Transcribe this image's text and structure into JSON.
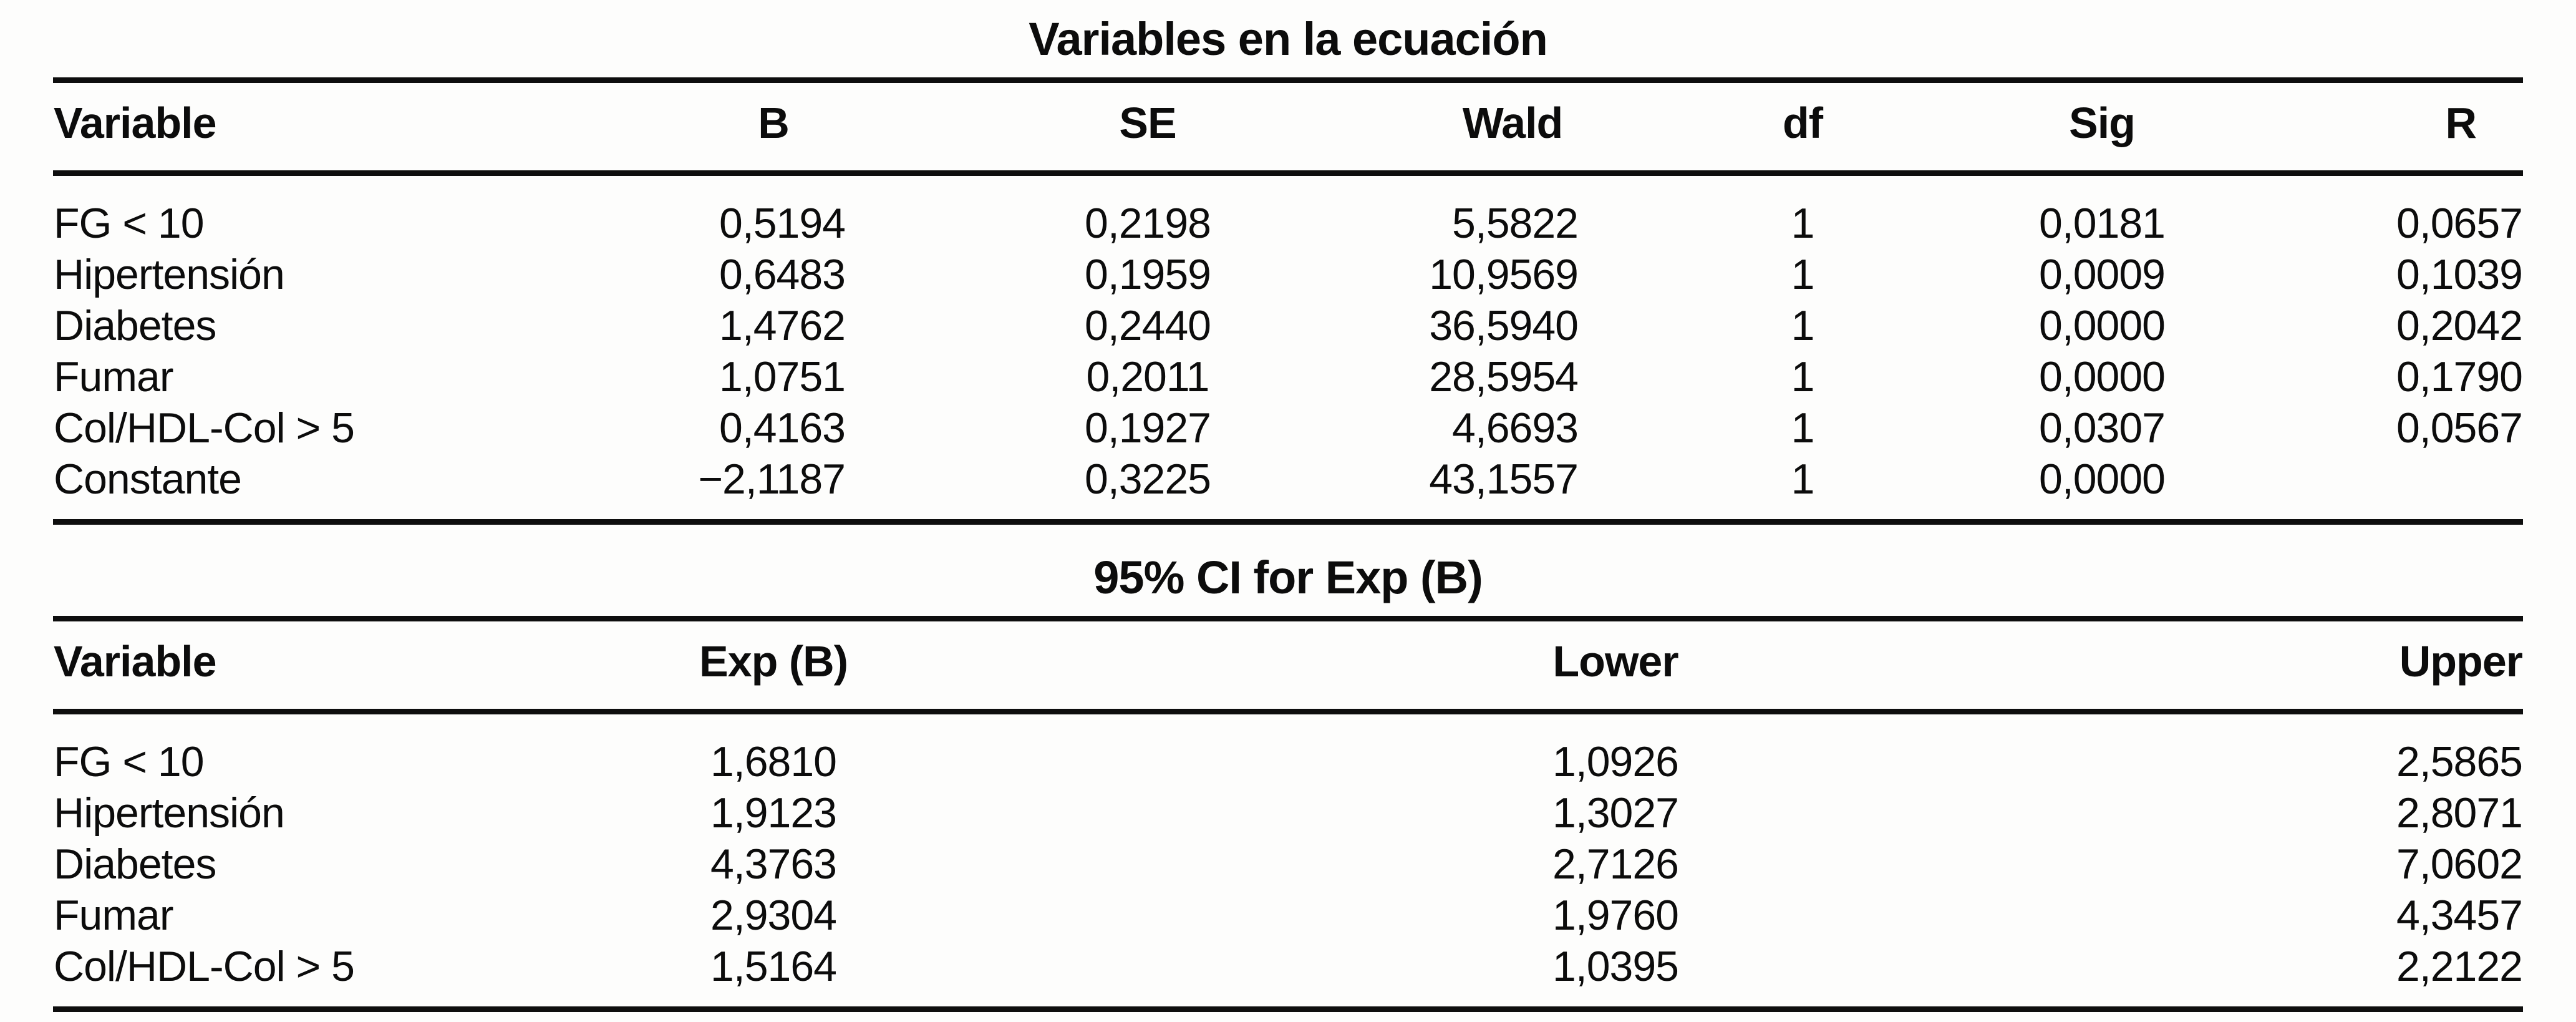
{
  "page": {
    "background_color": "#fdfdfc",
    "text_color": "#0c0c0c",
    "rule_color": "#0e0e0e"
  },
  "tables": [
    {
      "title": "Variables en la ecuación",
      "columns": [
        "Variable",
        "B",
        "SE",
        "Wald",
        "df",
        "Sig",
        "R"
      ],
      "rows": [
        [
          "FG < 10",
          "0,5194",
          "0,2198",
          "5,5822",
          "1",
          "0,0181",
          "0,0657"
        ],
        [
          "Hipertensión",
          "0,6483",
          "0,1959",
          "10,9569",
          "1",
          "0,0009",
          "0,1039"
        ],
        [
          "Diabetes",
          "1,4762",
          "0,2440",
          "36,5940",
          "1",
          "0,0000",
          "0,2042"
        ],
        [
          "Fumar",
          "1,0751",
          "0,2011",
          "28,5954",
          "1",
          "0,0000",
          "0,1790"
        ],
        [
          "Col/HDL-Col > 5",
          "0,4163",
          "0,1927",
          "4,6693",
          "1",
          "0,0307",
          "0,0567"
        ],
        [
          "Constante",
          "−2,1187",
          "0,3225",
          "43,1557",
          "1",
          "0,0000",
          ""
        ]
      ]
    },
    {
      "title": "95% CI for Exp (B)",
      "columns": [
        "Variable",
        "Exp (B)",
        "Lower",
        "Upper"
      ],
      "rows": [
        [
          "FG < 10",
          "1,6810",
          "1,0926",
          "2,5865"
        ],
        [
          "Hipertensión",
          "1,9123",
          "1,3027",
          "2,8071"
        ],
        [
          "Diabetes",
          "4,3763",
          "2,7126",
          "7,0602"
        ],
        [
          "Fumar",
          "2,9304",
          "1,9760",
          "4,3457"
        ],
        [
          "Col/HDL-Col > 5",
          "1,5164",
          "1,0395",
          "2,2122"
        ]
      ]
    }
  ]
}
